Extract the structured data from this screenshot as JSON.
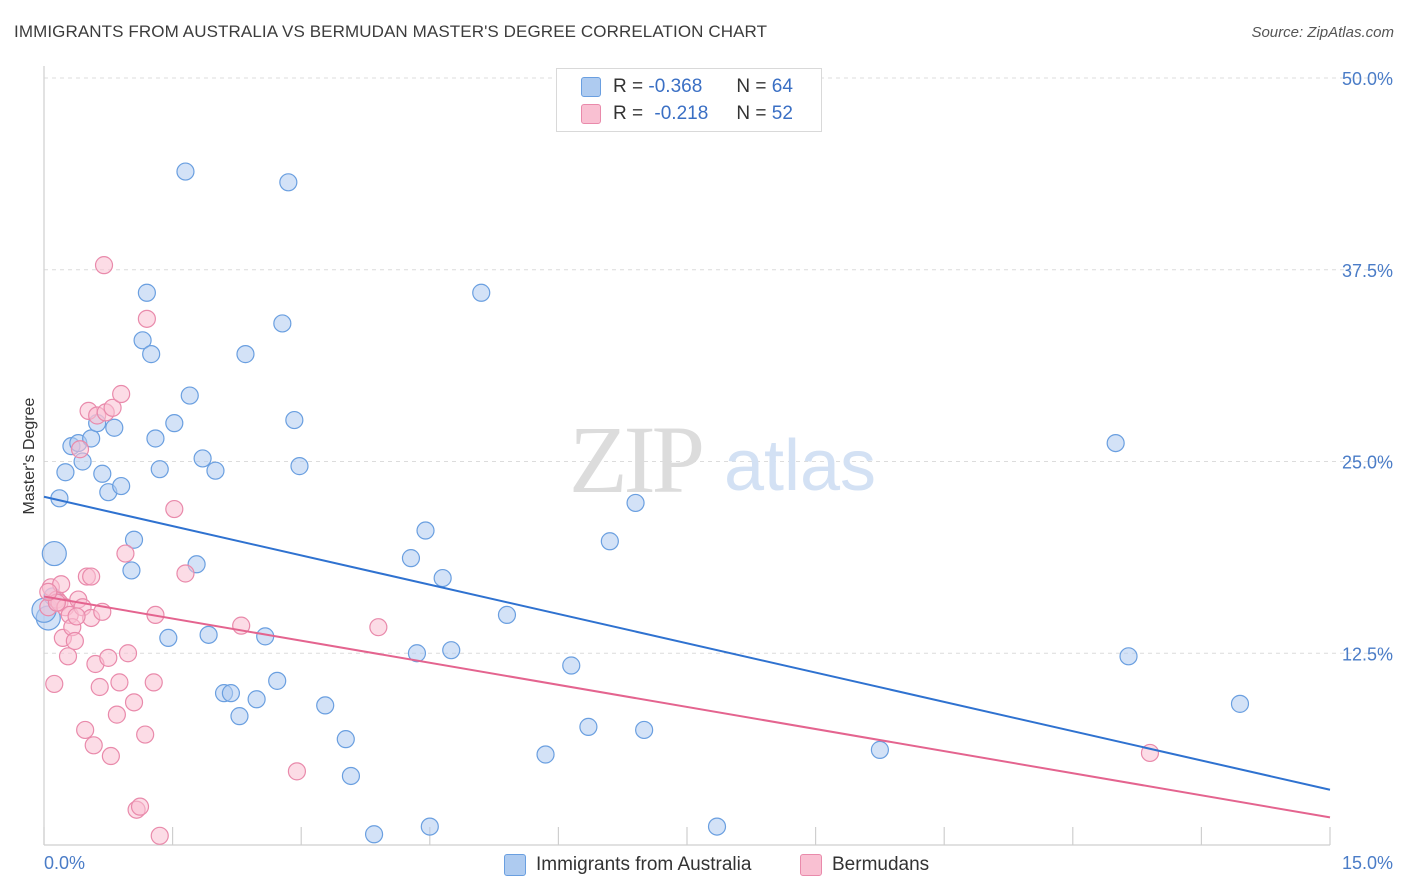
{
  "title": "IMMIGRANTS FROM AUSTRALIA VS BERMUDAN MASTER'S DEGREE CORRELATION CHART",
  "source": "Source: ZipAtlas.com",
  "watermark": {
    "zip": "ZIP",
    "atlas": "atlas"
  },
  "legend": {
    "rows": [
      {
        "r_label": "R =",
        "r_value": "-0.368",
        "n_label": "N =",
        "n_value": "64",
        "color": "#aecbf0",
        "border": "#6a9fe0"
      },
      {
        "r_label": "R =",
        "r_value": "-0.218",
        "n_label": "N =",
        "n_value": "52",
        "color": "#f9c0d2",
        "border": "#e98aab"
      }
    ]
  },
  "bottom_legend": [
    {
      "label": "Immigrants from Australia",
      "color": "#aecbf0",
      "border": "#6a9fe0"
    },
    {
      "label": "Bermudans",
      "color": "#f9c0d2",
      "border": "#e98aab"
    }
  ],
  "chart_data": {
    "type": "scatter",
    "xlabel": "",
    "ylabel": "Master's Degree",
    "xlim": [
      0,
      15
    ],
    "ylim": [
      0,
      50
    ],
    "x_tick_labels": [
      "0.0%",
      "15.0%"
    ],
    "y_ticks": [
      12.5,
      25.0,
      37.5,
      50.0
    ],
    "y_tick_labels": [
      "12.5%",
      "25.0%",
      "37.5%",
      "50.0%"
    ],
    "grid": true,
    "legend_position": "top-center",
    "series": [
      {
        "name": "Immigrants from Australia",
        "color": "#6a9fe0",
        "fill": "#aecbf0",
        "trend": {
          "x": [
            0,
            15
          ],
          "y": [
            22.7,
            3.6
          ],
          "color": "#2f72d0"
        },
        "points": [
          [
            0.05,
            14.8
          ],
          [
            0.12,
            19.0
          ],
          [
            0.18,
            22.6
          ],
          [
            0.25,
            24.3
          ],
          [
            0.32,
            26.0
          ],
          [
            0.4,
            26.2
          ],
          [
            0.45,
            25.0
          ],
          [
            0.55,
            26.5
          ],
          [
            0.62,
            27.5
          ],
          [
            0.68,
            24.2
          ],
          [
            0.75,
            23.0
          ],
          [
            0.82,
            27.2
          ],
          [
            0.9,
            23.4
          ],
          [
            1.05,
            19.9
          ],
          [
            1.02,
            17.9
          ],
          [
            1.15,
            32.9
          ],
          [
            1.2,
            36.0
          ],
          [
            1.25,
            32.0
          ],
          [
            1.3,
            26.5
          ],
          [
            1.35,
            24.5
          ],
          [
            1.45,
            13.5
          ],
          [
            1.52,
            27.5
          ],
          [
            1.65,
            43.9
          ],
          [
            1.7,
            29.3
          ],
          [
            1.78,
            18.3
          ],
          [
            1.85,
            25.2
          ],
          [
            1.92,
            13.7
          ],
          [
            2.0,
            24.4
          ],
          [
            2.1,
            9.9
          ],
          [
            2.18,
            9.9
          ],
          [
            2.28,
            8.4
          ],
          [
            2.35,
            32.0
          ],
          [
            2.48,
            9.5
          ],
          [
            2.58,
            13.6
          ],
          [
            2.78,
            34.0
          ],
          [
            2.72,
            10.7
          ],
          [
            2.85,
            43.2
          ],
          [
            2.92,
            27.7
          ],
          [
            2.98,
            24.7
          ],
          [
            3.28,
            9.1
          ],
          [
            3.52,
            6.9
          ],
          [
            3.58,
            4.5
          ],
          [
            3.85,
            0.7
          ],
          [
            4.28,
            18.7
          ],
          [
            4.35,
            12.5
          ],
          [
            4.45,
            20.5
          ],
          [
            4.5,
            1.2
          ],
          [
            4.65,
            17.4
          ],
          [
            4.75,
            12.7
          ],
          [
            5.1,
            36.0
          ],
          [
            5.4,
            15.0
          ],
          [
            5.85,
            5.9
          ],
          [
            6.15,
            11.7
          ],
          [
            6.35,
            7.7
          ],
          [
            6.6,
            19.8
          ],
          [
            6.9,
            22.3
          ],
          [
            7.0,
            7.5
          ],
          [
            7.85,
            1.2
          ],
          [
            9.75,
            6.2
          ],
          [
            12.5,
            26.2
          ],
          [
            12.65,
            12.3
          ],
          [
            13.95,
            9.2
          ],
          [
            0.1,
            16.2
          ],
          [
            0.0,
            15.3
          ]
        ]
      },
      {
        "name": "Bermudans",
        "color": "#e98aab",
        "fill": "#f9c0d2",
        "trend": {
          "x": [
            0,
            15
          ],
          "y": [
            16.2,
            1.8
          ],
          "color": "#e4648f"
        },
        "points": [
          [
            0.05,
            15.5
          ],
          [
            0.08,
            16.8
          ],
          [
            0.12,
            10.5
          ],
          [
            0.15,
            16.0
          ],
          [
            0.18,
            15.8
          ],
          [
            0.2,
            17.0
          ],
          [
            0.22,
            13.5
          ],
          [
            0.25,
            15.5
          ],
          [
            0.28,
            12.3
          ],
          [
            0.3,
            15.0
          ],
          [
            0.33,
            14.2
          ],
          [
            0.36,
            13.3
          ],
          [
            0.4,
            16.0
          ],
          [
            0.42,
            25.8
          ],
          [
            0.45,
            15.5
          ],
          [
            0.48,
            7.5
          ],
          [
            0.5,
            17.5
          ],
          [
            0.52,
            28.3
          ],
          [
            0.55,
            14.8
          ],
          [
            0.58,
            6.5
          ],
          [
            0.6,
            11.8
          ],
          [
            0.62,
            28.0
          ],
          [
            0.65,
            10.3
          ],
          [
            0.68,
            15.2
          ],
          [
            0.72,
            28.2
          ],
          [
            0.75,
            12.2
          ],
          [
            0.78,
            5.8
          ],
          [
            0.8,
            28.5
          ],
          [
            0.85,
            8.5
          ],
          [
            0.88,
            10.6
          ],
          [
            0.9,
            29.4
          ],
          [
            0.95,
            19.0
          ],
          [
            0.98,
            12.5
          ],
          [
            1.05,
            9.3
          ],
          [
            1.08,
            2.3
          ],
          [
            1.12,
            2.5
          ],
          [
            1.18,
            7.2
          ],
          [
            1.2,
            34.3
          ],
          [
            1.28,
            10.6
          ],
          [
            1.3,
            15.0
          ],
          [
            1.35,
            0.6
          ],
          [
            1.52,
            21.9
          ],
          [
            1.65,
            17.7
          ],
          [
            2.3,
            14.3
          ],
          [
            2.95,
            4.8
          ],
          [
            3.9,
            14.2
          ],
          [
            0.7,
            37.8
          ],
          [
            0.15,
            15.8
          ],
          [
            0.38,
            14.9
          ],
          [
            0.55,
            17.5
          ],
          [
            12.9,
            6.0
          ],
          [
            0.05,
            16.5
          ]
        ]
      }
    ]
  }
}
